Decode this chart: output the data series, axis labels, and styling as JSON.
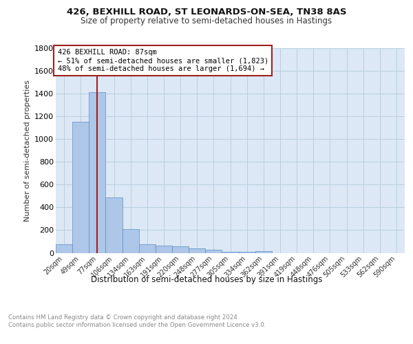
{
  "title_line1": "426, BEXHILL ROAD, ST LEONARDS-ON-SEA, TN38 8AS",
  "title_line2": "Size of property relative to semi-detached houses in Hastings",
  "xlabel": "Distribution of semi-detached houses by size in Hastings",
  "ylabel": "Number of semi-detached properties",
  "categories": [
    "20sqm",
    "49sqm",
    "77sqm",
    "106sqm",
    "134sqm",
    "163sqm",
    "191sqm",
    "220sqm",
    "248sqm",
    "277sqm",
    "305sqm",
    "334sqm",
    "362sqm",
    "391sqm",
    "419sqm",
    "448sqm",
    "476sqm",
    "505sqm",
    "533sqm",
    "562sqm",
    "590sqm"
  ],
  "values": [
    75,
    1150,
    1415,
    490,
    210,
    78,
    62,
    55,
    42,
    28,
    12,
    8,
    14,
    0,
    0,
    0,
    0,
    0,
    0,
    0,
    0
  ],
  "bar_color": "#aec6e8",
  "bar_edge_color": "#5a8fc0",
  "property_label": "426 BEXHILL ROAD: 87sqm",
  "annotation_smaller": "← 51% of semi-detached houses are smaller (1,823)",
  "annotation_larger": "48% of semi-detached houses are larger (1,694) →",
  "vline_color": "#a02020",
  "box_edge_color": "#a02020",
  "background_color": "#ffffff",
  "plot_bg_color": "#dce8f5",
  "grid_color": "#b8cfe0",
  "ylim": [
    0,
    1800
  ],
  "yticks": [
    0,
    200,
    400,
    600,
    800,
    1000,
    1200,
    1400,
    1600,
    1800
  ],
  "footnote": "Contains HM Land Registry data © Crown copyright and database right 2024.\nContains public sector information licensed under the Open Government Licence v3.0.",
  "vline_bin_index": 2
}
